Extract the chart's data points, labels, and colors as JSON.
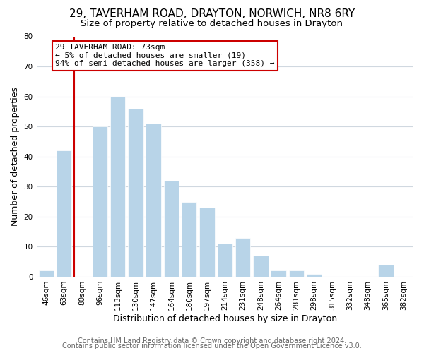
{
  "title": "29, TAVERHAM ROAD, DRAYTON, NORWICH, NR8 6RY",
  "subtitle": "Size of property relative to detached houses in Drayton",
  "xlabel": "Distribution of detached houses by size in Drayton",
  "ylabel": "Number of detached properties",
  "bar_labels": [
    "46sqm",
    "63sqm",
    "80sqm",
    "96sqm",
    "113sqm",
    "130sqm",
    "147sqm",
    "164sqm",
    "180sqm",
    "197sqm",
    "214sqm",
    "231sqm",
    "248sqm",
    "264sqm",
    "281sqm",
    "298sqm",
    "315sqm",
    "332sqm",
    "348sqm",
    "365sqm",
    "382sqm"
  ],
  "bar_values": [
    2,
    42,
    0,
    50,
    60,
    56,
    51,
    32,
    25,
    23,
    11,
    13,
    7,
    2,
    2,
    1,
    0,
    0,
    0,
    4,
    0
  ],
  "bar_color": "#b8d4e8",
  "bar_edge_color": "#b8d4e8",
  "vline_color": "#cc0000",
  "vline_x_index": 2.0,
  "ylim": [
    0,
    80
  ],
  "yticks": [
    0,
    10,
    20,
    30,
    40,
    50,
    60,
    70,
    80
  ],
  "annotation_box_text": "29 TAVERHAM ROAD: 73sqm\n← 5% of detached houses are smaller (19)\n94% of semi-detached houses are larger (358) →",
  "annotation_box_edge_color": "#cc0000",
  "footer_line1": "Contains HM Land Registry data © Crown copyright and database right 2024.",
  "footer_line2": "Contains public sector information licensed under the Open Government Licence v3.0.",
  "background_color": "#ffffff",
  "grid_color": "#d0d8e0",
  "title_fontsize": 11,
  "subtitle_fontsize": 9.5,
  "axis_label_fontsize": 9,
  "tick_fontsize": 7.5,
  "annotation_fontsize": 8,
  "footer_fontsize": 7
}
